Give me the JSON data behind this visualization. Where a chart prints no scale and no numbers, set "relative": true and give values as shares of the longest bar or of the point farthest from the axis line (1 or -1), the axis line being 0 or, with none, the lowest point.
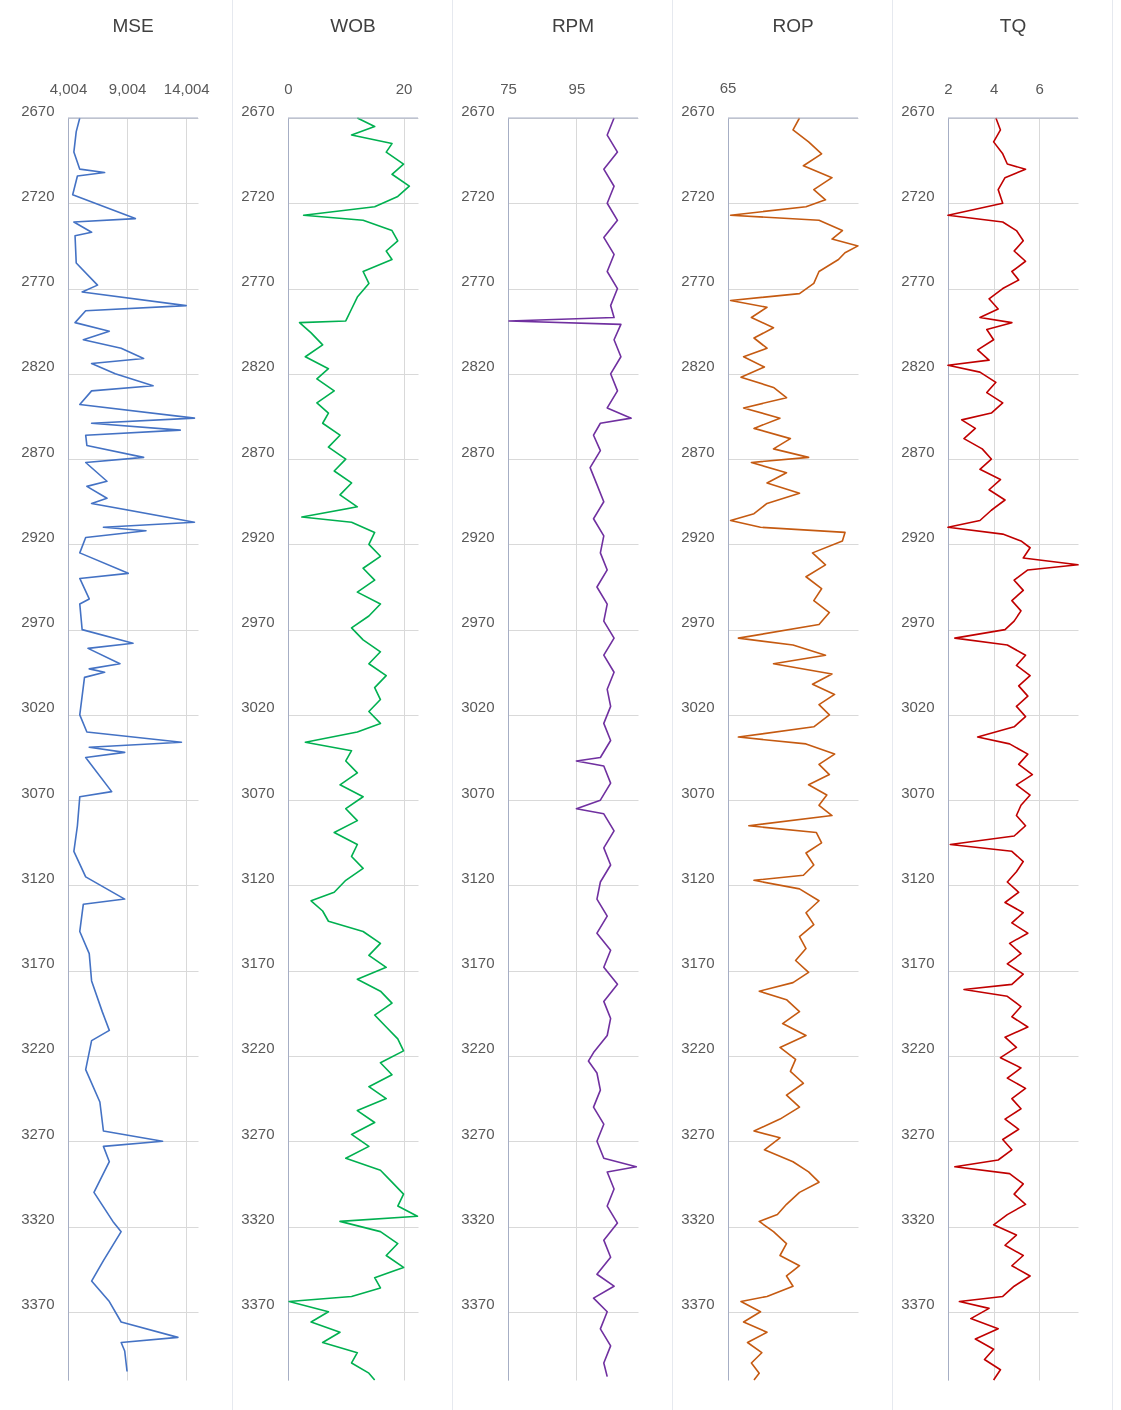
{
  "chart_data": [
    {
      "type": "line",
      "title": "MSE",
      "orientation": "horizontal",
      "grid": true,
      "x": [
        2670,
        2678,
        2690,
        2700,
        2702,
        2704,
        2715,
        2729,
        2731,
        2737,
        2739,
        2755,
        2768,
        2772,
        2780,
        2783,
        2790,
        2795,
        2800,
        2805,
        2811,
        2814,
        2820,
        2827,
        2830,
        2838,
        2846,
        2849,
        2853,
        2856,
        2862,
        2869,
        2872,
        2883,
        2886,
        2893,
        2896,
        2907,
        2910,
        2912,
        2916,
        2925,
        2937,
        2940,
        2952,
        2955,
        2970,
        2978,
        2981,
        2990,
        2993,
        2995,
        2998,
        3020,
        3030,
        3036,
        3039,
        3042,
        3045,
        3065,
        3068,
        3085,
        3100,
        3115,
        3128,
        3131,
        3147,
        3160,
        3176,
        3194,
        3205,
        3211,
        3228,
        3247,
        3264,
        3270,
        3273,
        3282,
        3300,
        3317,
        3323,
        3340,
        3352,
        3364,
        3376,
        3385,
        3388,
        3393,
        3405
      ],
      "series": [
        {
          "color": "#4472c4",
          "values": [
            5000,
            4700,
            4500,
            5000,
            7100,
            4800,
            4400,
            9700,
            4500,
            6000,
            4600,
            4700,
            6500,
            5200,
            14000,
            5500,
            4600,
            7500,
            5300,
            8500,
            10400,
            6000,
            8000,
            11200,
            6000,
            5000,
            14700,
            6000,
            13500,
            5500,
            5600,
            10400,
            5500,
            7300,
            5600,
            7300,
            6000,
            14700,
            7000,
            10600,
            5500,
            5000,
            9100,
            5000,
            5800,
            5000,
            5200,
            9500,
            5700,
            8400,
            5800,
            7100,
            5400,
            5000,
            5600,
            13600,
            5800,
            8800,
            5500,
            7700,
            5000,
            4800,
            4500,
            5500,
            8800,
            5300,
            5000,
            5800,
            6000,
            6900,
            7500,
            6000,
            5500,
            6700,
            7000,
            12000,
            7000,
            7500,
            6200,
            7800,
            8500,
            7000,
            6000,
            7500,
            8500,
            13300,
            8500,
            8800,
            9000
          ]
        }
      ],
      "xlim": [
        4004,
        15000
      ],
      "xticks": [
        {
          "value": 4004,
          "label": "4,004"
        },
        {
          "value": 9004,
          "label": "9,004"
        },
        {
          "value": 14004,
          "label": "14,004"
        }
      ],
      "ylim": [
        3410,
        2670
      ],
      "yticks": [
        2670,
        2720,
        2770,
        2820,
        2870,
        2920,
        2970,
        3020,
        3070,
        3120,
        3170,
        3220,
        3270,
        3320,
        3370
      ]
    },
    {
      "type": "line",
      "title": "WOB",
      "orientation": "horizontal",
      "grid": true,
      "x": [
        2670,
        2675,
        2680,
        2685,
        2690,
        2697,
        2703,
        2710,
        2716,
        2722,
        2727,
        2730,
        2736,
        2742,
        2748,
        2753,
        2760,
        2767,
        2775,
        2782,
        2789,
        2790,
        2796,
        2803,
        2810,
        2817,
        2823,
        2830,
        2837,
        2843,
        2849,
        2856,
        2863,
        2870,
        2877,
        2884,
        2891,
        2898,
        2904,
        2907,
        2913,
        2920,
        2927,
        2934,
        2941,
        2948,
        2955,
        2962,
        2969,
        2976,
        2983,
        2990,
        2997,
        3004,
        3011,
        3018,
        3025,
        3030,
        3036,
        3041,
        3047,
        3054,
        3061,
        3068,
        3075,
        3082,
        3089,
        3096,
        3103,
        3110,
        3117,
        3124,
        3129,
        3135,
        3141,
        3147,
        3154,
        3161,
        3168,
        3175,
        3182,
        3189,
        3196,
        3203,
        3210,
        3217,
        3224,
        3231,
        3238,
        3245,
        3252,
        3259,
        3266,
        3273,
        3280,
        3287,
        3294,
        3301,
        3308,
        3314,
        3317,
        3323,
        3330,
        3337,
        3344,
        3350,
        3356,
        3361,
        3364,
        3370,
        3376,
        3382,
        3388,
        3394,
        3400,
        3406,
        3410
      ],
      "series": [
        {
          "color": "#00b050",
          "values": [
            12,
            15,
            11,
            18,
            17,
            20,
            18,
            21,
            19,
            15,
            2.7,
            13,
            18,
            19,
            17,
            18,
            13,
            14,
            12,
            11,
            10,
            2,
            4,
            6,
            3,
            7,
            5,
            8,
            5,
            7,
            6,
            9,
            7,
            10,
            8,
            11,
            9,
            12,
            2.4,
            11,
            15,
            14,
            16,
            13,
            15,
            12,
            16,
            14,
            11,
            13,
            16,
            14,
            17,
            15,
            16,
            14,
            16,
            12,
            3,
            11,
            10,
            12,
            9,
            13,
            10,
            12,
            8,
            12,
            11,
            13,
            10,
            8,
            4,
            6,
            7,
            13,
            16,
            14,
            17,
            12,
            16,
            18,
            15,
            17,
            19,
            20,
            16,
            18,
            14,
            17,
            12,
            15,
            11,
            14,
            10,
            16,
            18,
            20,
            19,
            22.4,
            9,
            16,
            19,
            17,
            20,
            15,
            16,
            11,
            0.2,
            7,
            4,
            9,
            6,
            12,
            11,
            14,
            15
          ]
        }
      ],
      "xlim": [
        0,
        22.5
      ],
      "xticks": [
        0,
        20
      ],
      "ylim": [
        3410,
        2670
      ],
      "yticks": [
        2670,
        2720,
        2770,
        2820,
        2870,
        2920,
        2970,
        3020,
        3070,
        3120,
        3170,
        3220,
        3270,
        3320,
        3370
      ]
    },
    {
      "type": "line",
      "title": "RPM",
      "orientation": "horizontal",
      "grid": true,
      "x": [
        2670,
        2680,
        2690,
        2700,
        2710,
        2720,
        2730,
        2740,
        2750,
        2760,
        2770,
        2780,
        2787,
        2789,
        2791,
        2800,
        2810,
        2820,
        2830,
        2840,
        2846,
        2849,
        2856,
        2865,
        2875,
        2885,
        2895,
        2905,
        2915,
        2925,
        2935,
        2945,
        2955,
        2965,
        2975,
        2985,
        2995,
        3005,
        3015,
        3025,
        3035,
        3045,
        3047,
        3050,
        3060,
        3070,
        3075,
        3078,
        3088,
        3098,
        3108,
        3118,
        3128,
        3138,
        3148,
        3158,
        3168,
        3178,
        3188,
        3198,
        3208,
        3218,
        3223,
        3230,
        3240,
        3250,
        3260,
        3270,
        3280,
        3285,
        3288,
        3298,
        3308,
        3318,
        3328,
        3338,
        3348,
        3355,
        3362,
        3370,
        3380,
        3390,
        3400,
        3408
      ],
      "series": [
        {
          "color": "#7030a0",
          "values": [
            106,
            104,
            107,
            103,
            106,
            104,
            107,
            103,
            106,
            104,
            107,
            105,
            106,
            75.3,
            108,
            106,
            108,
            105,
            107,
            104,
            111,
            102,
            100,
            102,
            99,
            101,
            103,
            100,
            103,
            102,
            104,
            101,
            104,
            103,
            106,
            103,
            106,
            104,
            105,
            103,
            105,
            102,
            95,
            103,
            105,
            102,
            95,
            103,
            106,
            103,
            105,
            102,
            101,
            104,
            101,
            105,
            103,
            107,
            103,
            105,
            104,
            100,
            98.5,
            101,
            102,
            100,
            103,
            101,
            103,
            112.5,
            104,
            106,
            104,
            107,
            103,
            105,
            101,
            106,
            100,
            104,
            102,
            105,
            103,
            104
          ]
        }
      ],
      "xlim": [
        75,
        113
      ],
      "xticks": [
        75,
        95
      ],
      "ylim": [
        3410,
        2670
      ],
      "yticks": [
        2670,
        2720,
        2770,
        2820,
        2870,
        2920,
        2970,
        3020,
        3070,
        3120,
        3170,
        3220,
        3270,
        3320,
        3370
      ]
    },
    {
      "type": "line",
      "title": "ROP",
      "orientation": "horizontal",
      "grid": true,
      "relative": true,
      "annotations": [
        "65"
      ],
      "x": [
        2670,
        2677,
        2684,
        2691,
        2698,
        2705,
        2712,
        2718,
        2722,
        2727,
        2730,
        2736,
        2741,
        2745,
        2749,
        2753,
        2760,
        2767,
        2773,
        2777,
        2781,
        2787,
        2793,
        2799,
        2805,
        2810,
        2816,
        2822,
        2828,
        2834,
        2840,
        2846,
        2852,
        2858,
        2864,
        2869,
        2872,
        2878,
        2884,
        2890,
        2896,
        2902,
        2906,
        2910,
        2913,
        2918,
        2925,
        2932,
        2939,
        2946,
        2953,
        2960,
        2967,
        2975,
        2979,
        2985,
        2990,
        2996,
        3002,
        3008,
        3014,
        3020,
        3027,
        3033,
        3037,
        3043,
        3049,
        3055,
        3061,
        3067,
        3073,
        3079,
        3085,
        3089,
        3095,
        3101,
        3108,
        3114,
        3117,
        3122,
        3129,
        3136,
        3143,
        3150,
        3157,
        3164,
        3171,
        3177,
        3182,
        3187,
        3194,
        3201,
        3208,
        3215,
        3222,
        3229,
        3236,
        3243,
        3250,
        3257,
        3264,
        3268,
        3275,
        3282,
        3288,
        3294,
        3300,
        3307,
        3313,
        3317,
        3323,
        3330,
        3337,
        3343,
        3349,
        3355,
        3361,
        3364,
        3370,
        3376,
        3382,
        3388,
        3394,
        3400,
        3406,
        3410
      ],
      "series": [
        {
          "color": "#c55a11",
          "values": [
            0.55,
            0.5,
            0.62,
            0.72,
            0.58,
            0.8,
            0.66,
            0.75,
            0.6,
            0.02,
            0.7,
            0.88,
            0.8,
            1,
            0.9,
            0.85,
            0.7,
            0.66,
            0.55,
            0.02,
            0.3,
            0.18,
            0.35,
            0.2,
            0.3,
            0.12,
            0.28,
            0.1,
            0.35,
            0.45,
            0.12,
            0.4,
            0.2,
            0.48,
            0.35,
            0.62,
            0.18,
            0.45,
            0.3,
            0.55,
            0.3,
            0.2,
            0.02,
            0.25,
            0.9,
            0.88,
            0.65,
            0.75,
            0.6,
            0.72,
            0.66,
            0.78,
            0.7,
            0.08,
            0.5,
            0.75,
            0.35,
            0.8,
            0.65,
            0.82,
            0.7,
            0.78,
            0.66,
            0.08,
            0.6,
            0.82,
            0.7,
            0.78,
            0.62,
            0.76,
            0.7,
            0.8,
            0.16,
            0.68,
            0.72,
            0.6,
            0.66,
            0.58,
            0.2,
            0.55,
            0.7,
            0.6,
            0.66,
            0.55,
            0.6,
            0.52,
            0.62,
            0.5,
            0.24,
            0.45,
            0.55,
            0.42,
            0.6,
            0.4,
            0.52,
            0.48,
            0.58,
            0.45,
            0.55,
            0.4,
            0.2,
            0.4,
            0.28,
            0.5,
            0.62,
            0.7,
            0.55,
            0.45,
            0.38,
            0.24,
            0.35,
            0.45,
            0.4,
            0.55,
            0.45,
            0.5,
            0.3,
            0.1,
            0.25,
            0.12,
            0.3,
            0.15,
            0.26,
            0.18,
            0.24,
            0.2
          ]
        }
      ],
      "ylim": [
        3410,
        2670
      ],
      "yticks": [
        2670,
        2720,
        2770,
        2820,
        2870,
        2920,
        2970,
        3020,
        3070,
        3120,
        3170,
        3220,
        3270,
        3320,
        3370
      ]
    },
    {
      "type": "line",
      "title": "TQ",
      "orientation": "horizontal",
      "grid": true,
      "x": [
        2670,
        2677,
        2684,
        2691,
        2697,
        2700,
        2705,
        2712,
        2720,
        2727,
        2731,
        2736,
        2742,
        2748,
        2754,
        2760,
        2765,
        2770,
        2776,
        2782,
        2787,
        2790,
        2794,
        2800,
        2806,
        2812,
        2815,
        2819,
        2825,
        2831,
        2837,
        2843,
        2847,
        2852,
        2858,
        2864,
        2870,
        2876,
        2882,
        2888,
        2894,
        2900,
        2906,
        2910,
        2914,
        2918,
        2922,
        2928,
        2932,
        2935,
        2941,
        2947,
        2953,
        2959,
        2965,
        2970,
        2975,
        2979,
        2985,
        2991,
        2997,
        3003,
        3009,
        3015,
        3021,
        3027,
        3033,
        3037,
        3043,
        3049,
        3055,
        3061,
        3067,
        3073,
        3079,
        3085,
        3091,
        3096,
        3100,
        3106,
        3112,
        3118,
        3124,
        3130,
        3136,
        3142,
        3148,
        3154,
        3160,
        3166,
        3172,
        3178,
        3181,
        3185,
        3191,
        3197,
        3203,
        3209,
        3215,
        3221,
        3227,
        3233,
        3239,
        3245,
        3251,
        3257,
        3263,
        3269,
        3275,
        3281,
        3285,
        3289,
        3295,
        3301,
        3307,
        3313,
        3319,
        3325,
        3331,
        3337,
        3343,
        3349,
        3355,
        3361,
        3364,
        3368,
        3374,
        3380,
        3386,
        3392,
        3398,
        3404,
        3410
      ],
      "series": [
        {
          "color": "#c00000",
          "values": [
            4.1,
            4.3,
            4,
            4.4,
            4.6,
            5.4,
            4.5,
            4.2,
            4.4,
            2,
            4.4,
            5,
            5.3,
            4.9,
            5.4,
            4.8,
            5.1,
            4.4,
            3.8,
            4.2,
            3.4,
            4.8,
            3.7,
            4,
            3.3,
            3.8,
            2,
            3.4,
            4.1,
            3.7,
            4.4,
            3.9,
            2.6,
            3.2,
            2.7,
            3.5,
            3.9,
            3.4,
            4.3,
            3.8,
            4.5,
            3.9,
            3.4,
            2,
            4.4,
            5.2,
            5.6,
            5.3,
            7.7,
            5.5,
            4.9,
            5.3,
            4.8,
            5.2,
            4.9,
            4.5,
            2.3,
            4.6,
            5.4,
            5,
            5.6,
            5.1,
            5.5,
            5,
            5.4,
            4.9,
            3.3,
            4.7,
            5.5,
            5.1,
            5.7,
            5,
            5.6,
            5.2,
            5,
            5.4,
            4.9,
            2.1,
            4.8,
            5.3,
            5,
            4.6,
            5.1,
            4.5,
            5.3,
            4.8,
            5.5,
            4.7,
            5.2,
            4.6,
            5.3,
            4.8,
            2.7,
            4.6,
            5.2,
            4.8,
            5.5,
            4.5,
            5,
            4.3,
            5.2,
            4.6,
            5.4,
            4.8,
            5.2,
            4.5,
            5.1,
            4.4,
            4.8,
            4.2,
            2.3,
            4.7,
            5.3,
            4.9,
            5.4,
            4.6,
            4,
            5,
            4.5,
            5.3,
            4.8,
            5.6,
            4.9,
            4.4,
            2.5,
            3.8,
            3,
            4.2,
            3.2,
            4,
            3.6,
            4.3,
            4
          ]
        }
      ],
      "xlim": [
        2,
        7.7
      ],
      "xticks": [
        2,
        4,
        6
      ],
      "ylim": [
        3410,
        2670
      ],
      "yticks": [
        2670,
        2720,
        2770,
        2820,
        2870,
        2920,
        2970,
        3020,
        3070,
        3120,
        3170,
        3220,
        3270,
        3320,
        3370
      ]
    }
  ]
}
